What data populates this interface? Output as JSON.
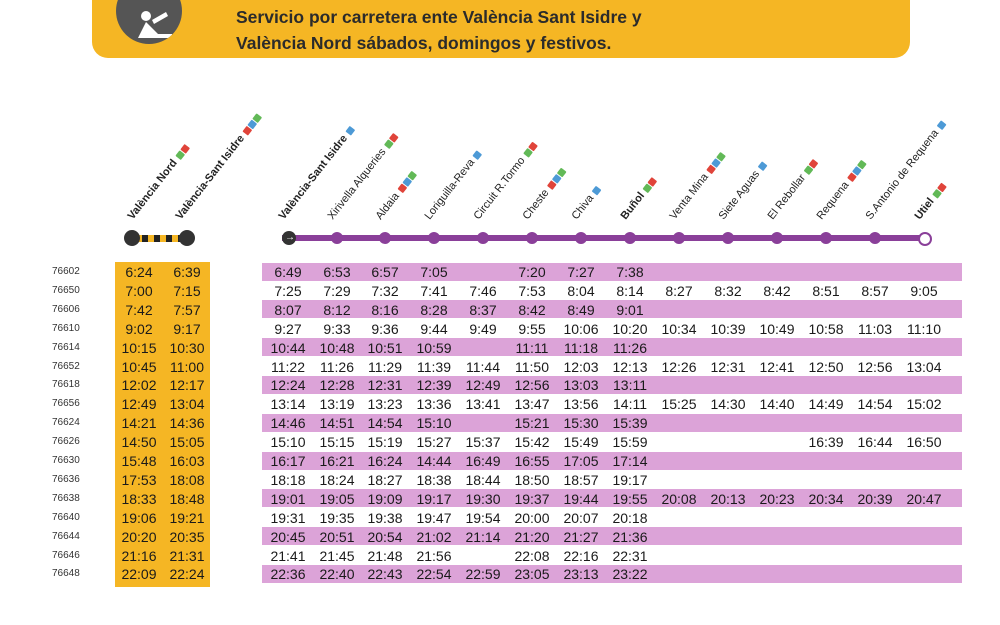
{
  "banner": {
    "line1": "Servicio por carretera ente València Sant Isidre y",
    "line2_prefix": "València Nord ",
    "line2_suffix": "sábados, domingos y festivos."
  },
  "colors": {
    "banner_yellow": "#f5b624",
    "row_pink": "#dca3d8",
    "line_purple": "#8a3f99"
  },
  "bus_stations": [
    "València Nord",
    "València-Sant Isidre"
  ],
  "train_stations": [
    "València-Sant Isidre",
    "Xirivella Alqueries",
    "Aldaia",
    "Loriguilla-Reva",
    "Circuit R.Tormo",
    "Cheste",
    "Chiva",
    "Buñol",
    "Venta Mina",
    "Siete Aguas",
    "El Rebollar",
    "Requena",
    "S.Antonio de Requena",
    "Utiel"
  ],
  "rows": [
    {
      "train": "76602",
      "bus": [
        "6:24",
        "6:39"
      ],
      "times": [
        "6:49",
        "6:53",
        "6:57",
        "7:05",
        "",
        "7:20",
        "7:27",
        "7:38",
        "",
        "",
        "",
        "",
        "",
        ""
      ]
    },
    {
      "train": "76650",
      "bus": [
        "7:00",
        "7:15"
      ],
      "times": [
        "7:25",
        "7:29",
        "7:32",
        "7:41",
        "7:46",
        "7:53",
        "8:04",
        "8:14",
        "8:27",
        "8:32",
        "8:42",
        "8:51",
        "8:57",
        "9:05"
      ]
    },
    {
      "train": "76606",
      "bus": [
        "7:42",
        "7:57"
      ],
      "times": [
        "8:07",
        "8:12",
        "8:16",
        "8:28",
        "8:37",
        "8:42",
        "8:49",
        "9:01",
        "",
        "",
        "",
        "",
        "",
        ""
      ]
    },
    {
      "train": "76610",
      "bus": [
        "9:02",
        "9:17"
      ],
      "times": [
        "9:27",
        "9:33",
        "9:36",
        "9:44",
        "9:49",
        "9:55",
        "10:06",
        "10:20",
        "10:34",
        "10:39",
        "10:49",
        "10:58",
        "11:03",
        "11:10"
      ]
    },
    {
      "train": "76614",
      "bus": [
        "10:15",
        "10:30"
      ],
      "times": [
        "10:44",
        "10:48",
        "10:51",
        "10:59",
        "",
        "11:11",
        "11:18",
        "11:26",
        "",
        "",
        "",
        "",
        "",
        ""
      ]
    },
    {
      "train": "76652",
      "bus": [
        "10:45",
        "11:00"
      ],
      "times": [
        "11:22",
        "11:26",
        "11:29",
        "11:39",
        "11:44",
        "11:50",
        "12:03",
        "12:13",
        "12:26",
        "12:31",
        "12:41",
        "12:50",
        "12:56",
        "13:04"
      ]
    },
    {
      "train": "76618",
      "bus": [
        "12:02",
        "12:17"
      ],
      "times": [
        "12:24",
        "12:28",
        "12:31",
        "12:39",
        "12:49",
        "12:56",
        "13:03",
        "13:11",
        "",
        "",
        "",
        "",
        "",
        ""
      ]
    },
    {
      "train": "76656",
      "bus": [
        "12:49",
        "13:04"
      ],
      "times": [
        "13:14",
        "13:19",
        "13:23",
        "13:36",
        "13:41",
        "13:47",
        "13:56",
        "14:11",
        "15:25",
        "14:30",
        "14:40",
        "14:49",
        "14:54",
        "15:02"
      ]
    },
    {
      "train": "76624",
      "bus": [
        "14:21",
        "14:36"
      ],
      "times": [
        "14:46",
        "14:51",
        "14:54",
        "15:10",
        "",
        "15:21",
        "15:30",
        "15:39",
        "",
        "",
        "",
        "",
        "",
        ""
      ]
    },
    {
      "train": "76626",
      "bus": [
        "14:50",
        "15:05"
      ],
      "times": [
        "15:10",
        "15:15",
        "15:19",
        "15:27",
        "15:37",
        "15:42",
        "15:49",
        "15:59",
        "",
        "",
        "",
        "16:39",
        "16:44",
        "16:50"
      ]
    },
    {
      "train": "76630",
      "bus": [
        "15:48",
        "16:03"
      ],
      "times": [
        "16:17",
        "16:21",
        "16:24",
        "14:44",
        "16:49",
        "16:55",
        "17:05",
        "17:14",
        "",
        "",
        "",
        "",
        "",
        ""
      ]
    },
    {
      "train": "76636",
      "bus": [
        "17:53",
        "18:08"
      ],
      "times": [
        "18:18",
        "18:24",
        "18:27",
        "18:38",
        "18:44",
        "18:50",
        "18:57",
        "19:17",
        "",
        "",
        "",
        "",
        "",
        ""
      ]
    },
    {
      "train": "76638",
      "bus": [
        "18:33",
        "18:48"
      ],
      "times": [
        "19:01",
        "19:05",
        "19:09",
        "19:17",
        "19:30",
        "19:37",
        "19:44",
        "19:55",
        "20:08",
        "20:13",
        "20:23",
        "20:34",
        "20:39",
        "20:47"
      ]
    },
    {
      "train": "76640",
      "bus": [
        "19:06",
        "19:21"
      ],
      "times": [
        "19:31",
        "19:35",
        "19:38",
        "19:47",
        "19:54",
        "20:00",
        "20:07",
        "20:18",
        "",
        "",
        "",
        "",
        "",
        ""
      ]
    },
    {
      "train": "76644",
      "bus": [
        "20:20",
        "20:35"
      ],
      "times": [
        "20:45",
        "20:51",
        "20:54",
        "21:02",
        "21:14",
        "21:20",
        "21:27",
        "21:36",
        "",
        "",
        "",
        "",
        "",
        ""
      ]
    },
    {
      "train": "76646",
      "bus": [
        "21:16",
        "21:31"
      ],
      "times": [
        "21:41",
        "21:45",
        "21:48",
        "21:56",
        "",
        "22:08",
        "22:16",
        "22:31",
        "",
        "",
        "",
        "",
        "",
        ""
      ]
    },
    {
      "train": "76648",
      "bus": [
        "22:09",
        "22:24"
      ],
      "times": [
        "22:36",
        "22:40",
        "22:43",
        "22:54",
        "22:59",
        "23:05",
        "23:13",
        "23:22",
        "",
        "",
        "",
        "",
        "",
        ""
      ]
    }
  ]
}
